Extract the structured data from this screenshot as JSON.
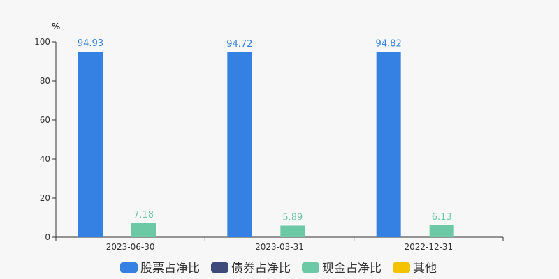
{
  "chart_data": {
    "type": "bar",
    "unit": "%",
    "categories": [
      "2023-06-30",
      "2023-03-31",
      "2022-12-31"
    ],
    "series": [
      {
        "name": "股票占净比",
        "color": "#3580e3",
        "values": [
          94.93,
          94.72,
          94.82
        ]
      },
      {
        "name": "债券占净比",
        "color": "#3d4a7a",
        "values": [
          null,
          null,
          null
        ]
      },
      {
        "name": "现金占净比",
        "color": "#6dc8a6",
        "values": [
          7.18,
          5.89,
          6.13
        ]
      },
      {
        "name": "其他",
        "color": "#f5c200",
        "values": [
          null,
          null,
          null
        ]
      }
    ],
    "ylim": [
      0,
      100
    ],
    "yticks": [
      0,
      20,
      40,
      60,
      80,
      100
    ],
    "grid": false,
    "legend_position": "bottom"
  }
}
